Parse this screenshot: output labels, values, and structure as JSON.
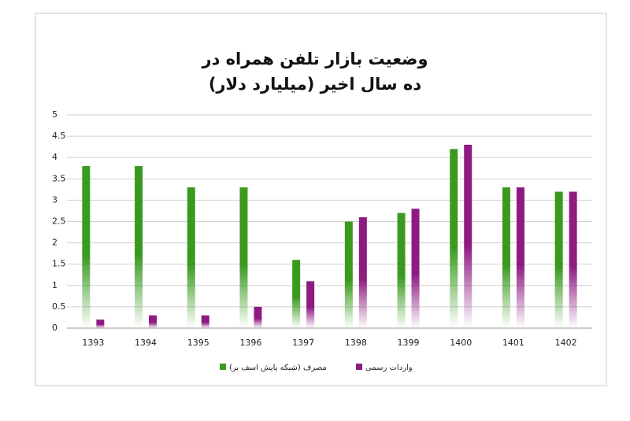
{
  "chart_data": {
    "type": "bar",
    "title": [
      "وضعیت بازار تلفن همراه در",
      "ده سال اخیر (میلیارد دلار)"
    ],
    "categories": [
      "1393",
      "1394",
      "1395",
      "1396",
      "1397",
      "1398",
      "1399",
      "1400",
      "1401",
      "1402"
    ],
    "series": [
      {
        "name": "مصرف (شبکه پایش اسف بر)",
        "color": "#3a9a1e",
        "values": [
          3.8,
          3.8,
          3.3,
          3.3,
          1.6,
          2.5,
          2.7,
          4.2,
          3.3,
          3.2
        ]
      },
      {
        "name": "واردات رسمی",
        "color": "#8e1a82",
        "values": [
          0.2,
          0.3,
          0.3,
          0.5,
          1.1,
          2.6,
          2.8,
          4.3,
          3.3,
          3.2
        ]
      }
    ],
    "ylim": [
      0,
      5
    ],
    "yticks": [
      0,
      0.5,
      1,
      1.5,
      2,
      2.5,
      3,
      3.5,
      4,
      4.5,
      5
    ],
    "grid": true,
    "legend": "bottom"
  }
}
